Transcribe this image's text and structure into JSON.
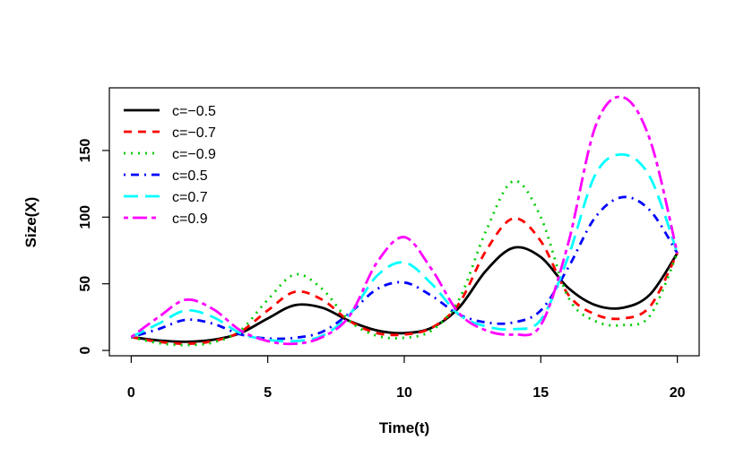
{
  "chart_data": {
    "type": "line",
    "title": "",
    "xlabel": "Time(t)",
    "ylabel": "Size(X)",
    "xlim": [
      -0.8,
      20.8
    ],
    "ylim": [
      -4,
      197
    ],
    "x_ticks": [
      0,
      5,
      10,
      15,
      20
    ],
    "y_ticks": [
      0,
      50,
      100,
      150
    ],
    "legend_position": "top-left",
    "grid": false,
    "x": [
      0,
      1,
      2,
      3,
      4,
      5,
      6,
      7,
      8,
      9,
      10,
      11,
      12,
      13,
      14,
      15,
      16,
      17,
      18,
      19,
      20
    ],
    "series": [
      {
        "name": "c=−0.5",
        "color": "#000000",
        "dash": "solid",
        "values": [
          10,
          7.5,
          6.5,
          8,
          13,
          24,
          34,
          32,
          22,
          15,
          13,
          17,
          32,
          60,
          77,
          70,
          47,
          34,
          32,
          42,
          73
        ]
      },
      {
        "name": "c=−0.7",
        "color": "#FF0000",
        "dash": "dashed",
        "values": [
          10,
          6.5,
          5,
          7,
          14,
          30,
          44,
          38,
          22,
          13,
          12,
          17,
          35,
          75,
          99,
          82,
          42,
          27,
          24,
          33,
          73
        ]
      },
      {
        "name": "c=−0.9",
        "color": "#00CD00",
        "dash": "dotted",
        "values": [
          10,
          5.5,
          4,
          6,
          15,
          38,
          57,
          46,
          22,
          11,
          9.5,
          15,
          38,
          90,
          127,
          100,
          40,
          22,
          19,
          26,
          73
        ]
      },
      {
        "name": "c=0.5",
        "color": "#0000FF",
        "dash": "dotdash",
        "values": [
          10,
          16,
          23,
          20,
          12,
          9,
          9.5,
          14,
          28,
          46,
          51,
          41,
          27,
          21,
          21,
          30,
          62,
          100,
          115,
          105,
          73
        ]
      },
      {
        "name": "c=0.7",
        "color": "#00FFFF",
        "dash": "longdash",
        "values": [
          10,
          20,
          30,
          25,
          13,
          8,
          7,
          11,
          27,
          56,
          66,
          50,
          27,
          18,
          16,
          23,
          70,
          132,
          147,
          130,
          73
        ]
      },
      {
        "name": "c=0.9",
        "color": "#FF00FF",
        "dash": "twodash",
        "values": [
          10,
          25,
          38,
          31,
          15,
          7,
          5,
          10,
          26,
          66,
          85,
          61,
          28,
          15,
          12,
          19,
          80,
          168,
          190,
          158,
          73
        ]
      }
    ]
  }
}
